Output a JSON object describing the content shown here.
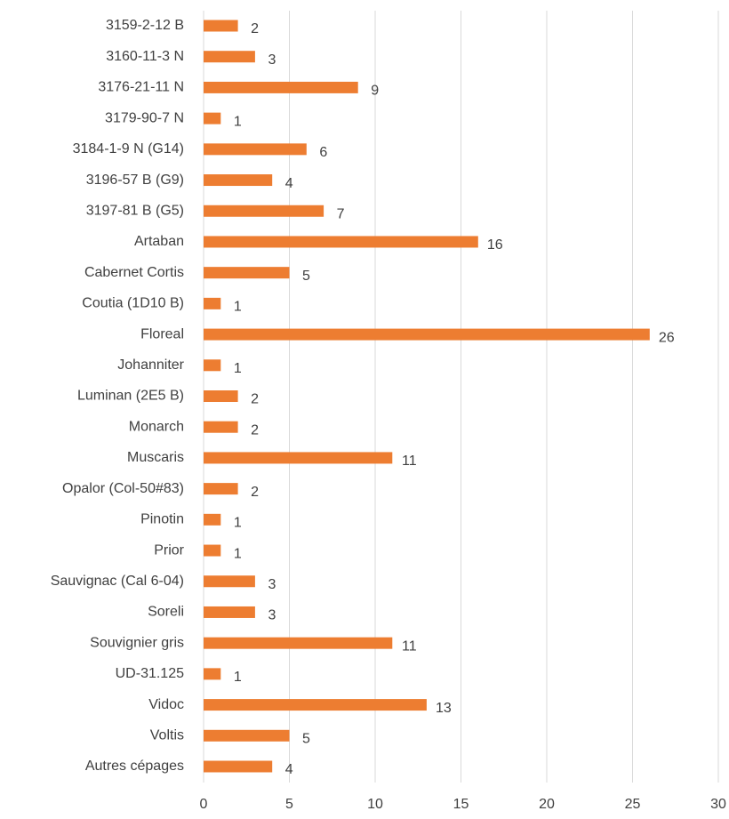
{
  "chart_data": {
    "type": "bar",
    "orientation": "horizontal",
    "categories": [
      "3159-2-12 B",
      "3160-11-3 N",
      "3176-21-11 N",
      "3179-90-7 N",
      "3184-1-9 N (G14)",
      "3196-57 B (G9)",
      "3197-81 B (G5)",
      "Artaban",
      "Cabernet Cortis",
      "Coutia (1D10 B)",
      "Floreal",
      "Johanniter",
      "Luminan (2E5 B)",
      "Monarch",
      "Muscaris",
      "Opalor (Col-50#83)",
      "Pinotin",
      "Prior",
      "Sauvignac (Cal 6-04)",
      "Soreli",
      "Souvignier gris",
      "UD-31.125",
      "Vidoc",
      "Voltis",
      "Autres cépages"
    ],
    "values": [
      2,
      3,
      9,
      1,
      6,
      4,
      7,
      16,
      5,
      1,
      26,
      1,
      2,
      2,
      11,
      2,
      1,
      1,
      3,
      3,
      11,
      1,
      13,
      5,
      4
    ],
    "color": "#ed7d31",
    "xlim": [
      0,
      30
    ],
    "xticks": [
      0,
      5,
      10,
      15,
      20,
      25,
      30
    ],
    "grid": true
  }
}
